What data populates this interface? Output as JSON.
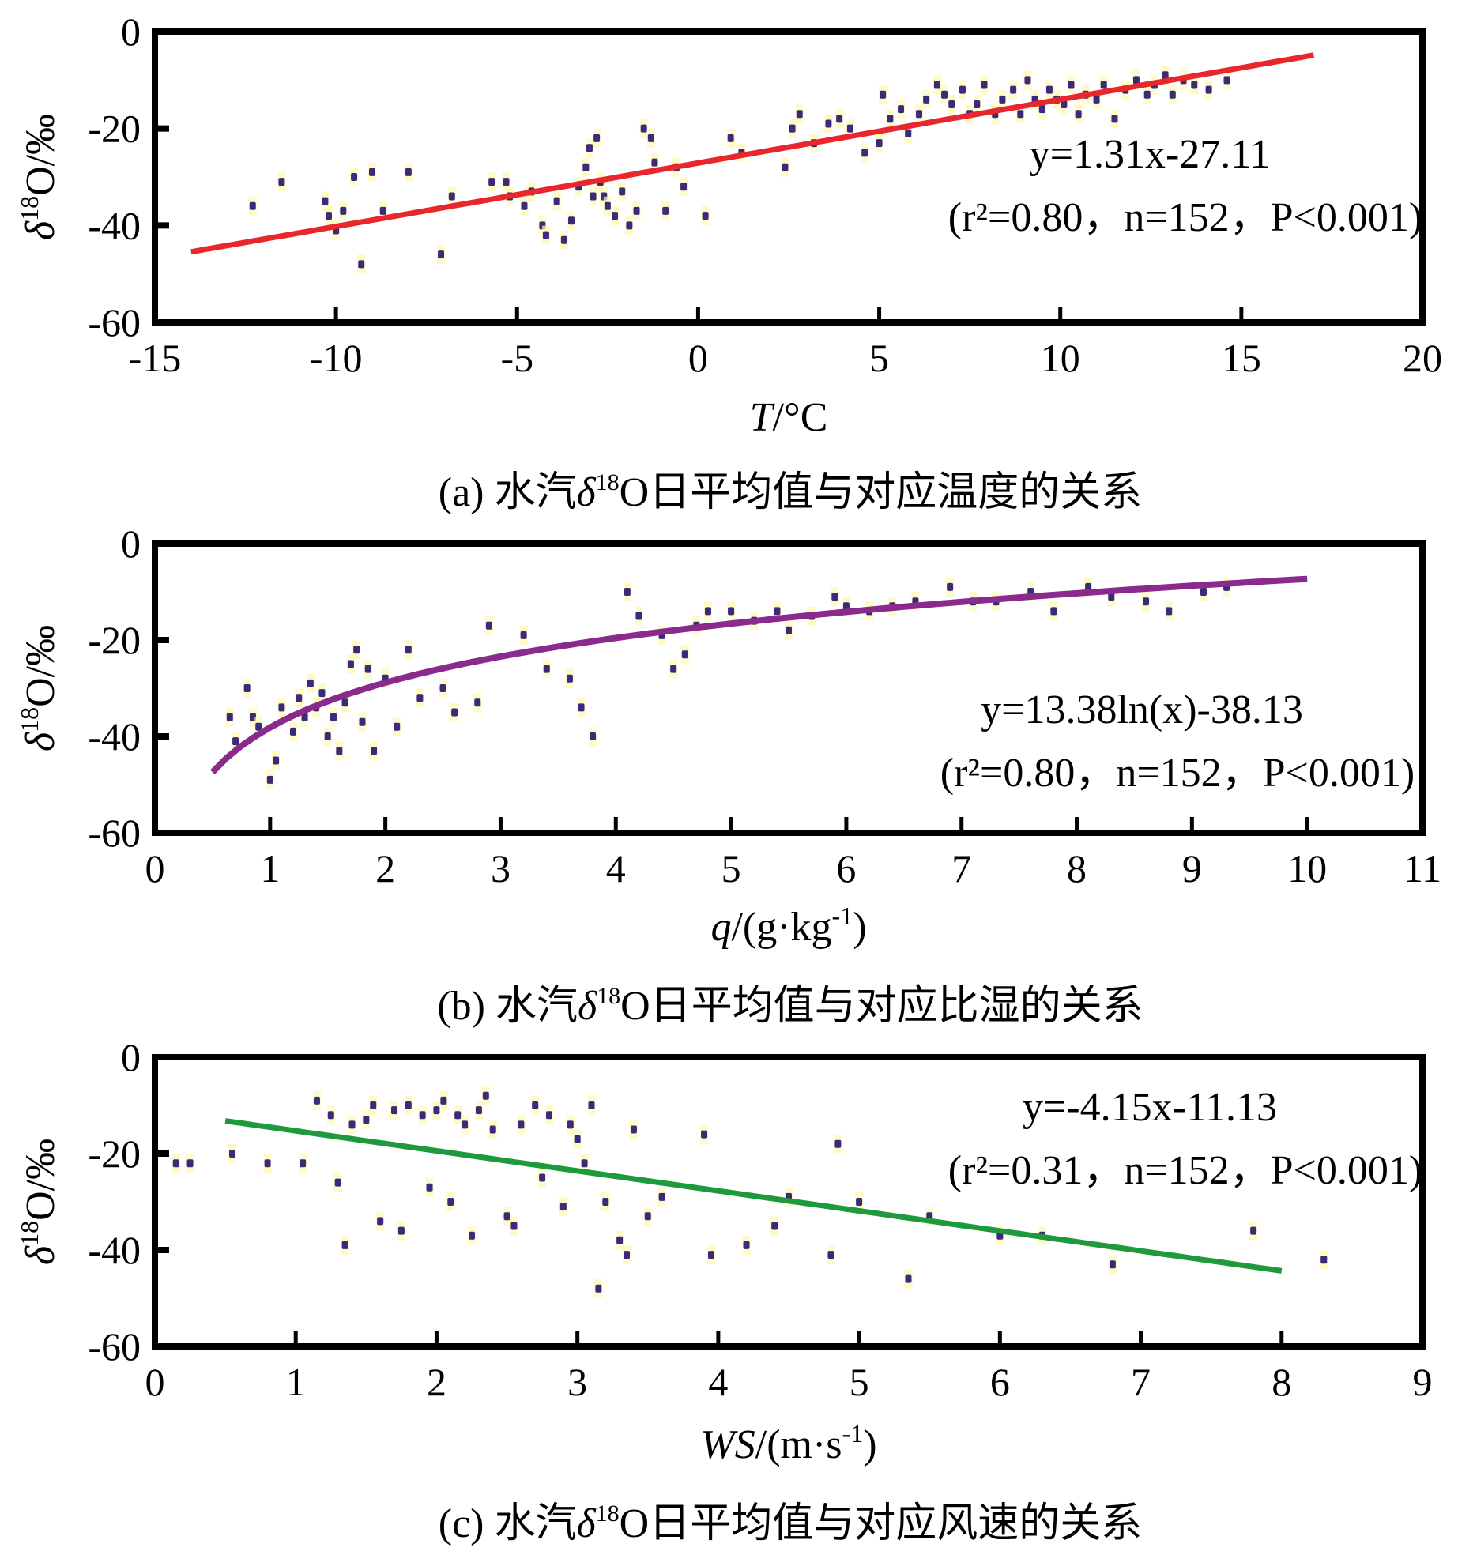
{
  "chart_data": [
    {
      "type": "scatter",
      "panel": "a",
      "caption_prefix": "(a) 水汽",
      "caption_delta": "δ",
      "caption_sup": "18",
      "caption_suffix": "O日平均值与对应温度的关系",
      "xlabel_main": "T",
      "xlabel_rest": "/°C",
      "ylabel_delta": "δ",
      "ylabel_sup": "18",
      "ylabel_rest": "O/‰",
      "xlim": [
        -15,
        20
      ],
      "ylim": [
        -60,
        0
      ],
      "xticks": [
        "-15",
        "-10",
        "-5",
        "0",
        "5",
        "10",
        "15",
        "20"
      ],
      "yticks": [
        "0",
        "-20",
        "-40",
        "-60"
      ],
      "equation": "y=1.31x-27.11",
      "stats": "(r²=0.80，n=152，P<0.001)",
      "fit": {
        "kind": "linear",
        "slope": 1.31,
        "intercept": -27.11,
        "x_range": [
          -14,
          17
        ],
        "color": "#e8262c"
      },
      "point_color": "#3a2a7a",
      "points": [
        [
          -12.3,
          -36
        ],
        [
          -11.5,
          -31
        ],
        [
          -10.3,
          -35
        ],
        [
          -10.2,
          -38
        ],
        [
          -10,
          -41
        ],
        [
          -9.8,
          -37
        ],
        [
          -9.5,
          -30
        ],
        [
          -9.3,
          -48
        ],
        [
          -9,
          -29
        ],
        [
          -8.7,
          -37
        ],
        [
          -8,
          -29
        ],
        [
          -7.1,
          -46
        ],
        [
          -6.8,
          -34
        ],
        [
          -5.7,
          -31
        ],
        [
          -5.3,
          -31
        ],
        [
          -5.2,
          -34
        ],
        [
          -4.8,
          -36
        ],
        [
          -4.6,
          -33
        ],
        [
          -4.3,
          -40
        ],
        [
          -4.2,
          -42
        ],
        [
          -3.9,
          -35
        ],
        [
          -3.7,
          -43
        ],
        [
          -3.5,
          -39
        ],
        [
          -3.3,
          -32
        ],
        [
          -3.1,
          -28
        ],
        [
          -3,
          -24
        ],
        [
          -2.9,
          -34
        ],
        [
          -2.8,
          -22
        ],
        [
          -2.7,
          -31
        ],
        [
          -2.6,
          -34
        ],
        [
          -2.5,
          -36
        ],
        [
          -2.3,
          -38
        ],
        [
          -2.1,
          -33
        ],
        [
          -1.9,
          -40
        ],
        [
          -1.7,
          -37
        ],
        [
          -1.5,
          -20
        ],
        [
          -1.3,
          -22
        ],
        [
          -1.2,
          -27
        ],
        [
          -0.9,
          -37
        ],
        [
          -0.6,
          -28
        ],
        [
          -0.4,
          -32
        ],
        [
          0.2,
          -38
        ],
        [
          0.9,
          -22
        ],
        [
          1.2,
          -25
        ],
        [
          2.4,
          -28
        ],
        [
          2.6,
          -20
        ],
        [
          2.8,
          -17
        ],
        [
          3.2,
          -23
        ],
        [
          3.6,
          -19
        ],
        [
          3.9,
          -18
        ],
        [
          4.2,
          -20
        ],
        [
          4.6,
          -25
        ],
        [
          5,
          -23
        ],
        [
          5.1,
          -13
        ],
        [
          5.3,
          -18
        ],
        [
          5.6,
          -16
        ],
        [
          5.8,
          -21
        ],
        [
          6.1,
          -17
        ],
        [
          6.3,
          -14
        ],
        [
          6.6,
          -11
        ],
        [
          6.8,
          -13
        ],
        [
          7,
          -15
        ],
        [
          7.3,
          -12
        ],
        [
          7.5,
          -17
        ],
        [
          7.7,
          -15
        ],
        [
          7.9,
          -11
        ],
        [
          8.2,
          -17
        ],
        [
          8.4,
          -14
        ],
        [
          8.7,
          -12
        ],
        [
          8.9,
          -17
        ],
        [
          9.1,
          -10
        ],
        [
          9.3,
          -14
        ],
        [
          9.5,
          -16
        ],
        [
          9.7,
          -12
        ],
        [
          9.9,
          -14
        ],
        [
          10.1,
          -15
        ],
        [
          10.3,
          -11
        ],
        [
          10.5,
          -17
        ],
        [
          10.7,
          -13
        ],
        [
          11,
          -14
        ],
        [
          11.2,
          -11
        ],
        [
          11.5,
          -18
        ],
        [
          11.8,
          -12
        ],
        [
          12.1,
          -10
        ],
        [
          12.4,
          -13
        ],
        [
          12.6,
          -11
        ],
        [
          12.9,
          -9
        ],
        [
          13.1,
          -13
        ],
        [
          13.4,
          -10
        ],
        [
          13.7,
          -11
        ],
        [
          14.1,
          -12
        ],
        [
          14.6,
          -10
        ]
      ]
    },
    {
      "type": "scatter",
      "panel": "b",
      "caption_prefix": "(b) 水汽",
      "caption_delta": "δ",
      "caption_sup": "18",
      "caption_suffix": "O日平均值与对应比湿的关系",
      "xlabel_main": "q",
      "xlabel_rest": "/(g·kg",
      "xlabel_sup": "-1",
      "xlabel_close": ")",
      "ylabel_delta": "δ",
      "ylabel_sup": "18",
      "ylabel_rest": "O/‰",
      "xlim": [
        0,
        11
      ],
      "ylim": [
        -60,
        0
      ],
      "xticks": [
        "0",
        "1",
        "2",
        "3",
        "4",
        "5",
        "6",
        "7",
        "8",
        "9",
        "10",
        "11"
      ],
      "yticks": [
        "0",
        "-20",
        "-40",
        "-60"
      ],
      "equation": "y=13.38ln(x)-38.13",
      "stats": "(r²=0.80，n=152，P<0.001)",
      "fit": {
        "kind": "log",
        "a": 13.38,
        "b": -38.13,
        "x_range": [
          0.5,
          10
        ],
        "color": "#8a2a8c"
      },
      "point_color": "#3a2a7a",
      "points": [
        [
          0.65,
          -36
        ],
        [
          0.7,
          -41
        ],
        [
          0.8,
          -30
        ],
        [
          0.85,
          -36
        ],
        [
          0.9,
          -38
        ],
        [
          1,
          -49
        ],
        [
          1.05,
          -45
        ],
        [
          1.1,
          -34
        ],
        [
          1.2,
          -39
        ],
        [
          1.25,
          -32
        ],
        [
          1.3,
          -36
        ],
        [
          1.35,
          -29
        ],
        [
          1.4,
          -34
        ],
        [
          1.45,
          -31
        ],
        [
          1.5,
          -40
        ],
        [
          1.55,
          -36
        ],
        [
          1.6,
          -43
        ],
        [
          1.65,
          -33
        ],
        [
          1.7,
          -25
        ],
        [
          1.75,
          -22
        ],
        [
          1.8,
          -37
        ],
        [
          1.85,
          -26
        ],
        [
          1.9,
          -43
        ],
        [
          2,
          -28
        ],
        [
          2.1,
          -38
        ],
        [
          2.2,
          -22
        ],
        [
          2.3,
          -32
        ],
        [
          2.5,
          -30
        ],
        [
          2.6,
          -35
        ],
        [
          2.8,
          -33
        ],
        [
          2.9,
          -17
        ],
        [
          3.2,
          -19
        ],
        [
          3.4,
          -26
        ],
        [
          3.6,
          -28
        ],
        [
          3.7,
          -34
        ],
        [
          3.8,
          -40
        ],
        [
          4.1,
          -10
        ],
        [
          4.2,
          -15
        ],
        [
          4.4,
          -19
        ],
        [
          4.5,
          -26
        ],
        [
          4.6,
          -23
        ],
        [
          4.7,
          -17
        ],
        [
          4.8,
          -14
        ],
        [
          5,
          -14
        ],
        [
          5.2,
          -16
        ],
        [
          5.4,
          -14
        ],
        [
          5.5,
          -18
        ],
        [
          5.7,
          -15
        ],
        [
          5.9,
          -11
        ],
        [
          6,
          -13
        ],
        [
          6.2,
          -14
        ],
        [
          6.4,
          -13
        ],
        [
          6.6,
          -12
        ],
        [
          6.9,
          -9
        ],
        [
          7.1,
          -12
        ],
        [
          7.3,
          -12
        ],
        [
          7.6,
          -10
        ],
        [
          7.8,
          -14
        ],
        [
          8.1,
          -9
        ],
        [
          8.3,
          -11
        ],
        [
          8.6,
          -12
        ],
        [
          8.8,
          -14
        ],
        [
          9.1,
          -10
        ],
        [
          9.3,
          -9
        ]
      ]
    },
    {
      "type": "scatter",
      "panel": "c",
      "caption_prefix": "(c) 水汽",
      "caption_delta": "δ",
      "caption_sup": "18",
      "caption_suffix": "O日平均值与对应风速的关系",
      "xlabel_main": "WS",
      "xlabel_rest": "/(m·s",
      "xlabel_sup": "-1",
      "xlabel_close": ")",
      "ylabel_delta": "δ",
      "ylabel_sup": "18",
      "ylabel_rest": "O/‰",
      "xlim": [
        0,
        9
      ],
      "ylim": [
        -60,
        0
      ],
      "xticks": [
        "0",
        "1",
        "2",
        "3",
        "4",
        "5",
        "6",
        "7",
        "8",
        "9"
      ],
      "yticks": [
        "0",
        "-20",
        "-40",
        "-60"
      ],
      "equation": "y=-4.15x-11.13",
      "stats": "(r²=0.31，n=152，P<0.001)",
      "fit": {
        "kind": "linear",
        "slope": -4.15,
        "intercept": -11.13,
        "x_range": [
          0.5,
          8
        ],
        "color": "#1e9a3c"
      },
      "point_color": "#3a2a7a",
      "points": [
        [
          0.15,
          -22
        ],
        [
          0.25,
          -22
        ],
        [
          0.55,
          -20
        ],
        [
          0.8,
          -22
        ],
        [
          1.05,
          -22
        ],
        [
          1.15,
          -9
        ],
        [
          1.25,
          -12
        ],
        [
          1.3,
          -26
        ],
        [
          1.35,
          -39
        ],
        [
          1.4,
          -14
        ],
        [
          1.5,
          -13
        ],
        [
          1.55,
          -10
        ],
        [
          1.6,
          -34
        ],
        [
          1.7,
          -11
        ],
        [
          1.75,
          -36
        ],
        [
          1.8,
          -10
        ],
        [
          1.9,
          -12
        ],
        [
          1.95,
          -27
        ],
        [
          2,
          -11
        ],
        [
          2.05,
          -9
        ],
        [
          2.1,
          -30
        ],
        [
          2.15,
          -12
        ],
        [
          2.2,
          -14
        ],
        [
          2.25,
          -37
        ],
        [
          2.3,
          -11
        ],
        [
          2.35,
          -8
        ],
        [
          2.4,
          -15
        ],
        [
          2.5,
          -33
        ],
        [
          2.55,
          -35
        ],
        [
          2.6,
          -14
        ],
        [
          2.7,
          -10
        ],
        [
          2.75,
          -25
        ],
        [
          2.8,
          -12
        ],
        [
          2.9,
          -31
        ],
        [
          2.95,
          -14
        ],
        [
          3,
          -17
        ],
        [
          3.05,
          -22
        ],
        [
          3.1,
          -10
        ],
        [
          3.15,
          -48
        ],
        [
          3.2,
          -30
        ],
        [
          3.3,
          -38
        ],
        [
          3.35,
          -41
        ],
        [
          3.4,
          -15
        ],
        [
          3.5,
          -33
        ],
        [
          3.6,
          -29
        ],
        [
          3.9,
          -16
        ],
        [
          3.95,
          -41
        ],
        [
          4.2,
          -39
        ],
        [
          4.4,
          -35
        ],
        [
          4.5,
          -29
        ],
        [
          4.8,
          -41
        ],
        [
          4.85,
          -18
        ],
        [
          5,
          -30
        ],
        [
          5.35,
          -46
        ],
        [
          5.5,
          -33
        ],
        [
          6,
          -37
        ],
        [
          6.3,
          -37
        ],
        [
          6.8,
          -43
        ],
        [
          7.8,
          -36
        ],
        [
          8.3,
          -42
        ]
      ]
    }
  ]
}
